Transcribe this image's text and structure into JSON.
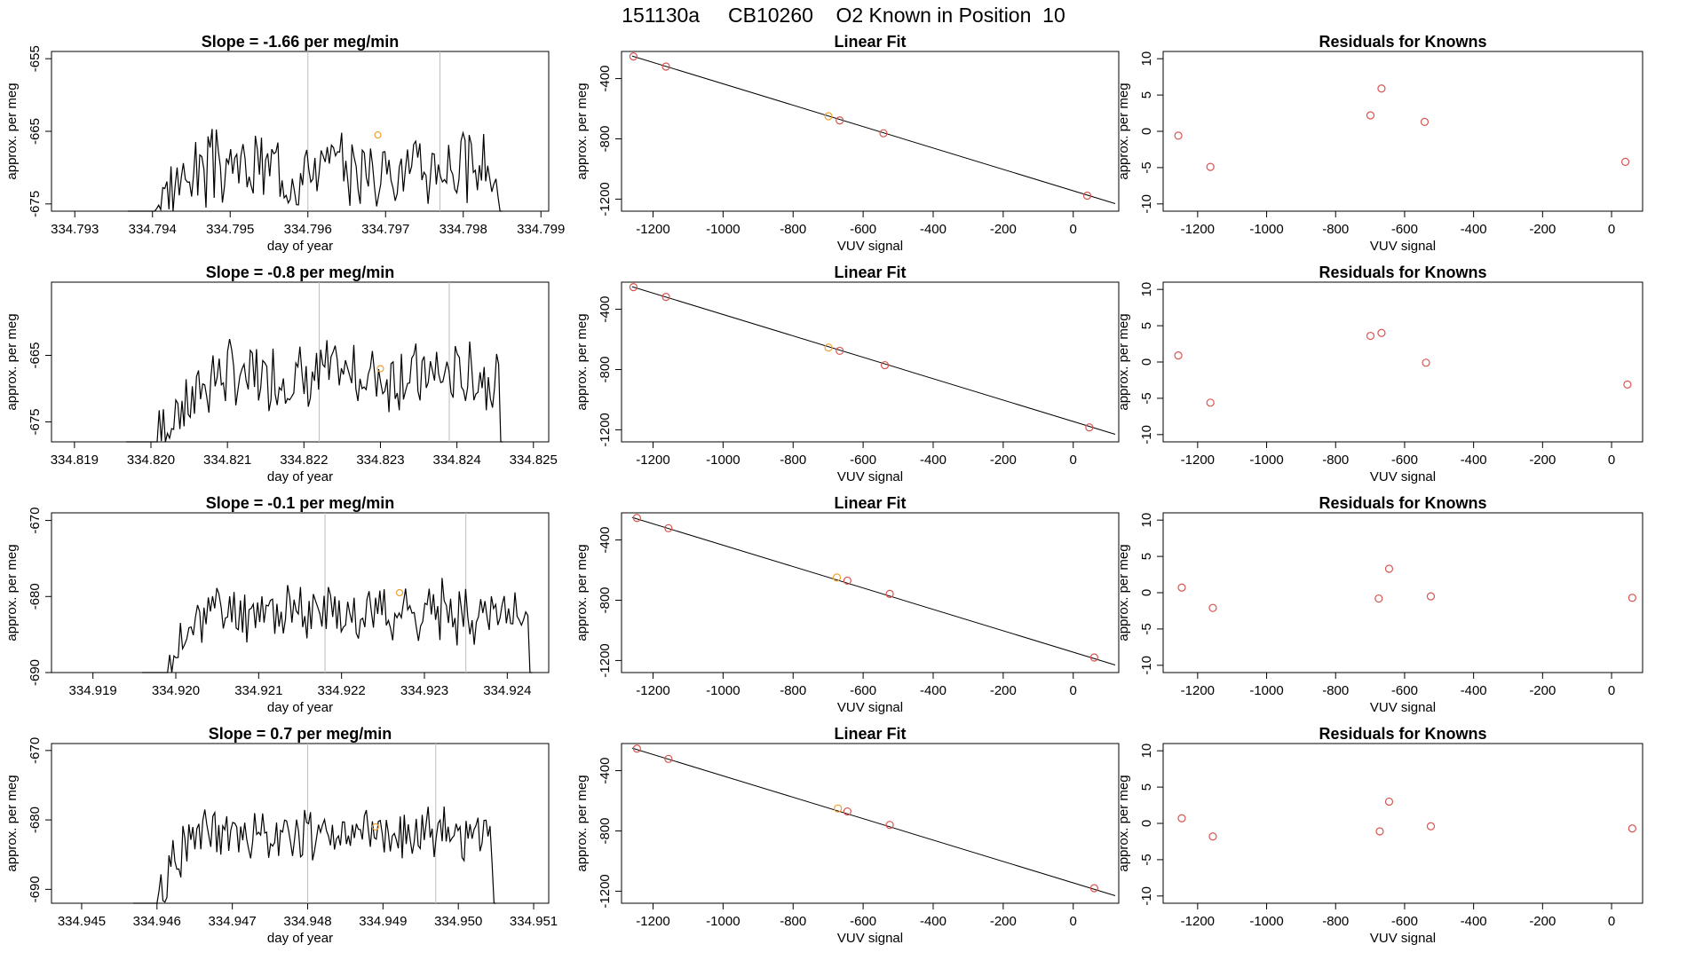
{
  "figure": {
    "title": "151130a     CB10260    O2 Known in Position  10"
  },
  "colors": {
    "line": "#000000",
    "grid_marker": "#bebebe",
    "residual_point": "#d9534f",
    "highlight_point": "#f0a030"
  },
  "chart_data": [
    {
      "type": "line",
      "title": "Slope =  -1.66  per meg/min",
      "xlabel": "day of year",
      "ylabel": "approx. per meg",
      "xlim": [
        334.7927,
        334.7991
      ],
      "ylim": [
        -676,
        -654
      ],
      "xticks": [
        "334.793",
        "334.794",
        "334.795",
        "334.796",
        "334.797",
        "334.798",
        "334.799"
      ],
      "yticks": [
        "-675",
        "-665",
        "-655"
      ],
      "vlines": [
        334.796,
        334.7977
      ],
      "trace_start": 334.794,
      "trace_end": 334.7985,
      "trace_base": -670,
      "trace_amp": 4,
      "trace_rise": 334.7945,
      "trace_seed": 3,
      "highlight": {
        "x": 334.7969,
        "y": -665.5
      }
    },
    {
      "type": "scatter",
      "title": "Linear Fit",
      "xlabel": "VUV signal",
      "ylabel": "approx. per meg",
      "xlim": [
        -1290,
        130
      ],
      "ylim": [
        -1280,
        -220
      ],
      "xticks": [
        "-1200",
        "-1000",
        "-800",
        "-600",
        "-400",
        "-200",
        "0"
      ],
      "yticks": [
        "-1200",
        "-800",
        "-400"
      ],
      "fit_line": {
        "x1": -1260,
        "y1": -250,
        "x2": 120,
        "y2": -1230
      },
      "points": [
        [
          -1256,
          -253
        ],
        [
          -1163,
          -320
        ],
        [
          -699,
          -650
        ],
        [
          -667,
          -678
        ],
        [
          -542,
          -763
        ],
        [
          40,
          -1177
        ]
      ],
      "highlight_index": 2
    },
    {
      "type": "scatter",
      "title": "Residuals for Knowns",
      "xlabel": "VUV signal",
      "ylabel": "approx. per meg",
      "xlim": [
        -1300,
        90
      ],
      "ylim": [
        -11,
        11
      ],
      "xticks": [
        "-1200",
        "-1000",
        "-800",
        "-600",
        "-400",
        "-200",
        "0"
      ],
      "yticks": [
        "-10",
        "-5",
        "0",
        "5",
        "10"
      ],
      "points": [
        [
          -1256,
          -0.6
        ],
        [
          -1163,
          -4.9
        ],
        [
          -699,
          2.2
        ],
        [
          -667,
          5.9
        ],
        [
          -542,
          1.3
        ],
        [
          40,
          -4.2
        ]
      ]
    },
    {
      "type": "line",
      "title": "Slope =  -0.8  per meg/min",
      "xlabel": "day of year",
      "ylabel": "approx. per meg",
      "xlim": [
        334.8187,
        334.8252
      ],
      "ylim": [
        -678,
        -654
      ],
      "xticks": [
        "334.819",
        "334.820",
        "334.821",
        "334.822",
        "334.823",
        "334.824",
        "334.825"
      ],
      "yticks": [
        "-675",
        "-665"
      ],
      "vlines": [
        334.8222,
        334.8239
      ],
      "trace_start": 334.82,
      "trace_end": 334.8246,
      "trace_base": -668,
      "trace_amp": 4,
      "trace_rise": 334.8208,
      "trace_seed": 7,
      "highlight": {
        "x": 334.823,
        "y": -667
      }
    },
    {
      "type": "scatter",
      "title": "Linear Fit",
      "xlabel": "VUV signal",
      "ylabel": "approx. per meg",
      "xlim": [
        -1290,
        130
      ],
      "ylim": [
        -1280,
        -220
      ],
      "xticks": [
        "-1200",
        "-1000",
        "-800",
        "-600",
        "-400",
        "-200",
        "0"
      ],
      "yticks": [
        "-1200",
        "-800",
        "-400"
      ],
      "fit_line": {
        "x1": -1260,
        "y1": -250,
        "x2": 120,
        "y2": -1230
      },
      "points": [
        [
          -1256,
          -253
        ],
        [
          -1163,
          -318
        ],
        [
          -699,
          -654
        ],
        [
          -667,
          -676
        ],
        [
          -538,
          -771
        ],
        [
          46,
          -1184
        ]
      ],
      "highlight_index": 2
    },
    {
      "type": "scatter",
      "title": "Residuals for Knowns",
      "xlabel": "VUV signal",
      "ylabel": "approx. per meg",
      "xlim": [
        -1300,
        90
      ],
      "ylim": [
        -11,
        11
      ],
      "xticks": [
        "-1200",
        "-1000",
        "-800",
        "-600",
        "-400",
        "-200",
        "0"
      ],
      "yticks": [
        "-10",
        "-5",
        "0",
        "5",
        "10"
      ],
      "points": [
        [
          -1256,
          0.9
        ],
        [
          -1163,
          -5.6
        ],
        [
          -699,
          3.6
        ],
        [
          -667,
          4.0
        ],
        [
          -538,
          -0.1
        ],
        [
          46,
          -3.1
        ]
      ]
    },
    {
      "type": "line",
      "title": "Slope =  -0.1  per meg/min",
      "xlabel": "day of year",
      "ylabel": "approx. per meg",
      "xlim": [
        334.9185,
        334.9245
      ],
      "ylim": [
        -690,
        -669
      ],
      "xticks": [
        "334.919",
        "334.920",
        "334.921",
        "334.922",
        "334.923",
        "334.924"
      ],
      "yticks": [
        "-690",
        "-680",
        "-670"
      ],
      "vlines": [
        334.9218,
        334.9235
      ],
      "trace_start": 334.9199,
      "trace_end": 334.9243,
      "trace_base": -682,
      "trace_amp": 3,
      "trace_rise": 334.9203,
      "trace_seed": 11,
      "highlight": {
        "x": 334.9227,
        "y": -679.5
      }
    },
    {
      "type": "scatter",
      "title": "Linear Fit",
      "xlabel": "VUV signal",
      "ylabel": "approx. per meg",
      "xlim": [
        -1290,
        130
      ],
      "ylim": [
        -1280,
        -220
      ],
      "xticks": [
        "-1200",
        "-1000",
        "-800",
        "-600",
        "-400",
        "-200",
        "0"
      ],
      "yticks": [
        "-1200",
        "-800",
        "-400"
      ],
      "fit_line": {
        "x1": -1260,
        "y1": -250,
        "x2": 120,
        "y2": -1230
      },
      "points": [
        [
          -1246,
          -254
        ],
        [
          -1156,
          -322
        ],
        [
          -675,
          -649
        ],
        [
          -645,
          -670
        ],
        [
          -524,
          -758
        ],
        [
          60,
          -1180
        ]
      ],
      "highlight_index": 2
    },
    {
      "type": "scatter",
      "title": "Residuals for Knowns",
      "xlabel": "VUV signal",
      "ylabel": "approx. per meg",
      "xlim": [
        -1300,
        90
      ],
      "ylim": [
        -11,
        11
      ],
      "xticks": [
        "-1200",
        "-1000",
        "-800",
        "-600",
        "-400",
        "-200",
        "0"
      ],
      "yticks": [
        "-10",
        "-5",
        "0",
        "5",
        "10"
      ],
      "points": [
        [
          -1246,
          0.7
        ],
        [
          -1156,
          -2.1
        ],
        [
          -675,
          -0.8
        ],
        [
          -645,
          3.3
        ],
        [
          -524,
          -0.5
        ],
        [
          60,
          -0.7
        ]
      ]
    },
    {
      "type": "line",
      "title": "Slope =  0.7  per meg/min",
      "xlabel": "day of year",
      "ylabel": "approx. per meg",
      "xlim": [
        334.9446,
        334.9512
      ],
      "ylim": [
        -692,
        -669
      ],
      "xticks": [
        "334.945",
        "334.946",
        "334.947",
        "334.948",
        "334.949",
        "334.950",
        "334.951"
      ],
      "yticks": [
        "-690",
        "-680",
        "-670"
      ],
      "vlines": [
        334.948,
        334.9497
      ],
      "trace_start": 334.946,
      "trace_end": 334.9505,
      "trace_base": -682,
      "trace_amp": 3,
      "trace_rise": 334.9464,
      "trace_seed": 19,
      "highlight": {
        "x": 334.9489,
        "y": -681
      }
    },
    {
      "type": "scatter",
      "title": "Linear Fit",
      "xlabel": "VUV signal",
      "ylabel": "approx. per meg",
      "xlim": [
        -1290,
        130
      ],
      "ylim": [
        -1280,
        -220
      ],
      "xticks": [
        "-1200",
        "-1000",
        "-800",
        "-600",
        "-400",
        "-200",
        "0"
      ],
      "yticks": [
        "-1200",
        "-800",
        "-400"
      ],
      "fit_line": {
        "x1": -1260,
        "y1": -250,
        "x2": 120,
        "y2": -1230
      },
      "points": [
        [
          -1246,
          -254
        ],
        [
          -1156,
          -322
        ],
        [
          -672,
          -651
        ],
        [
          -645,
          -671
        ],
        [
          -524,
          -760
        ],
        [
          60,
          -1180
        ]
      ],
      "highlight_index": 2
    },
    {
      "type": "scatter",
      "title": "Residuals for Knowns",
      "xlabel": "VUV signal",
      "ylabel": "approx. per meg",
      "xlim": [
        -1300,
        90
      ],
      "ylim": [
        -11,
        11
      ],
      "xticks": [
        "-1200",
        "-1000",
        "-800",
        "-600",
        "-400",
        "-200",
        "0"
      ],
      "yticks": [
        "-10",
        "-5",
        "0",
        "5",
        "10"
      ],
      "points": [
        [
          -1246,
          0.7
        ],
        [
          -1156,
          -1.8
        ],
        [
          -672,
          -1.1
        ],
        [
          -645,
          3.0
        ],
        [
          -524,
          -0.4
        ],
        [
          60,
          -0.7
        ]
      ]
    }
  ]
}
